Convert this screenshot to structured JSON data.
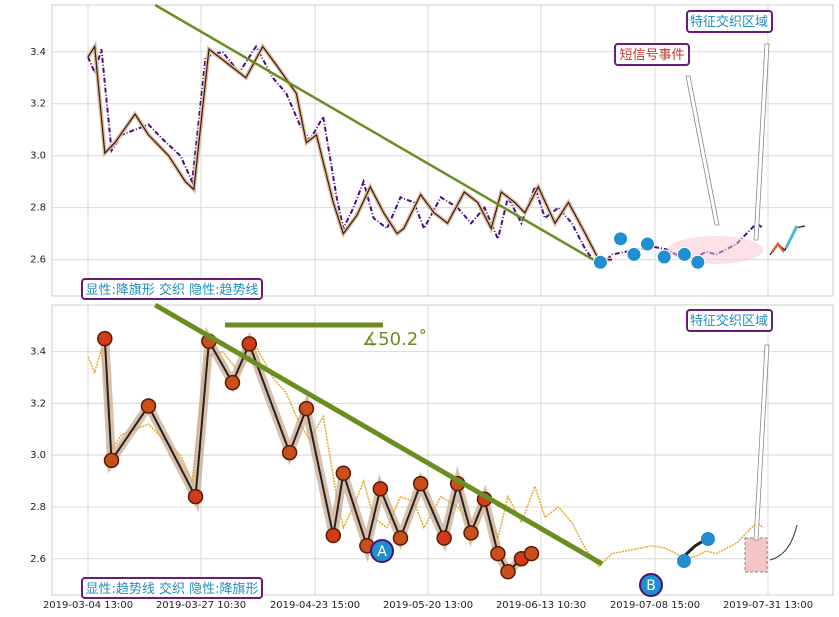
{
  "chart_data": [
    {
      "type": "line",
      "panel": "top",
      "ylim": [
        2.46,
        3.58
      ],
      "yticks": [
        2.6,
        2.8,
        3.0,
        3.2,
        3.4
      ],
      "grid": true,
      "series": [
        {
          "style": "dash-dot",
          "color": "#4b0e82",
          "x": [
            0,
            4,
            8,
            14,
            20,
            28,
            36,
            45,
            55,
            62,
            70,
            80,
            90,
            100,
            110,
            118,
            126,
            132,
            140,
            148,
            152,
            158,
            164,
            170,
            178,
            186,
            194,
            200,
            210,
            220,
            228,
            236,
            244,
            250,
            258,
            266,
            272,
            280,
            288,
            296,
            304,
            312,
            320,
            328,
            336,
            344,
            350,
            356,
            362,
            368,
            374,
            380,
            386,
            392,
            398,
            402
          ],
          "y": [
            3.38,
            3.32,
            3.41,
            3.02,
            3.08,
            3.1,
            3.12,
            3.06,
            3.0,
            2.9,
            3.38,
            3.4,
            3.32,
            3.42,
            3.3,
            3.24,
            3.12,
            3.06,
            3.15,
            2.84,
            2.72,
            2.8,
            2.9,
            2.76,
            2.72,
            2.84,
            2.82,
            2.72,
            2.84,
            2.8,
            2.74,
            2.8,
            2.68,
            2.84,
            2.74,
            2.88,
            2.76,
            2.8,
            2.74,
            2.64,
            2.57,
            2.62,
            2.63,
            2.64,
            2.65,
            2.64,
            2.62,
            2.6,
            2.61,
            2.63,
            2.62,
            2.64,
            2.66,
            2.7,
            2.74,
            2.72
          ]
        },
        {
          "style": "solid",
          "color": "#222222",
          "x": [
            0,
            4,
            10,
            16,
            28,
            36,
            48,
            58,
            63,
            72,
            84,
            94,
            104,
            112,
            124,
            130,
            136,
            146,
            152,
            160,
            168,
            176,
            184,
            188,
            198,
            206,
            214,
            224,
            232,
            240,
            246,
            254,
            260,
            268,
            278,
            286,
            296,
            304,
            312
          ],
          "y": [
            3.38,
            3.42,
            3.01,
            3.05,
            3.16,
            3.08,
            3.0,
            2.9,
            2.87,
            3.41,
            3.35,
            3.3,
            3.42,
            3.35,
            3.24,
            3.05,
            3.08,
            2.82,
            2.7,
            2.77,
            2.88,
            2.78,
            2.7,
            2.72,
            2.85,
            2.78,
            2.74,
            2.86,
            2.82,
            2.72,
            2.86,
            2.82,
            2.78,
            2.88,
            2.74,
            2.82,
            2.7,
            2.6,
            2.6
          ]
        }
      ],
      "trendline": {
        "x": [
          40,
          306
        ],
        "y": [
          3.58,
          2.58
        ],
        "color": "#6b8e23"
      },
      "markers_x": [
        305,
        317,
        325,
        333,
        343,
        355,
        363
      ],
      "markers_y": [
        2.59,
        2.68,
        2.62,
        2.66,
        2.61,
        2.62,
        2.59
      ],
      "annotations": [
        {
          "text": "短信号事件",
          "color": "#c0392b"
        },
        {
          "text": "特征交织区域",
          "color": "#1f8fc0"
        },
        {
          "text": "显性:降旗形 交织 隐性:趋势线",
          "color": "#1f8fc0"
        }
      ]
    },
    {
      "type": "line",
      "panel": "bottom",
      "ylim": [
        2.46,
        3.58
      ],
      "yticks": [
        2.6,
        2.8,
        3.0,
        3.2,
        3.4
      ],
      "xticks": [
        "2019-03-04 13:00",
        "2019-03-27 10:30",
        "2019-04-23 15:00",
        "2019-05-20 13:00",
        "2019-06-13 10:30",
        "2019-07-08 15:00",
        "2019-07-31 13:00"
      ],
      "grid": true,
      "series": [
        {
          "name": "zigzag",
          "x": [
            10,
            14,
            36,
            64,
            72,
            86,
            96,
            120,
            130,
            146,
            152,
            166,
            174,
            186,
            198,
            212,
            220,
            228,
            236,
            244,
            250,
            258,
            264
          ],
          "y": [
            3.45,
            2.98,
            3.19,
            2.84,
            3.44,
            3.28,
            3.43,
            3.01,
            3.18,
            2.69,
            2.93,
            2.65,
            2.87,
            2.68,
            2.89,
            2.68,
            2.89,
            2.7,
            2.83,
            2.62,
            2.55,
            2.6,
            2.62
          ]
        }
      ],
      "trendline": {
        "x": [
          40,
          306
        ],
        "y": [
          3.58,
          2.58
        ],
        "color": "#6b8e23"
      },
      "angle_label": "∡50.2˚",
      "point_labels": [
        "A",
        "B"
      ],
      "annotations": [
        {
          "text": "特征交织区域",
          "color": "#1f8fc0"
        },
        {
          "text": "显性:趋势线 交织 隐性:降旗形",
          "color": "#1f8fc0"
        }
      ]
    }
  ]
}
